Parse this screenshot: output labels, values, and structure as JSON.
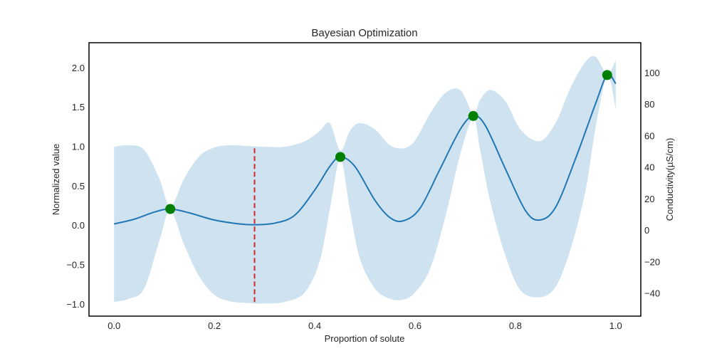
{
  "chart_data": {
    "type": "line",
    "title": "Bayesian Optimization",
    "xlabel": "Proportion of solute",
    "ylabel": "Normalized value",
    "ylabel_right": "Conductivity(µS/cm)",
    "xlim": [
      -0.05,
      1.05
    ],
    "ylim": [
      -1.15,
      2.32
    ],
    "ylim_right": [
      -54.4,
      119.2
    ],
    "x_ticks": [
      0.0,
      0.2,
      0.4,
      0.6,
      0.8,
      1.0
    ],
    "x_tick_labels": [
      "0.0",
      "0.2",
      "0.4",
      "0.6",
      "0.8",
      "1.0"
    ],
    "y_ticks": [
      -1.0,
      -0.5,
      0.0,
      0.5,
      1.0,
      1.5,
      2.0
    ],
    "y_tick_labels": [
      "−1.0",
      "−0.5",
      "0.0",
      "0.5",
      "1.0",
      "1.5",
      "2.0"
    ],
    "y_right_ticks": [
      -40,
      -20,
      0,
      20,
      40,
      60,
      80,
      100
    ],
    "y_right_tick_labels": [
      "−40",
      "−20",
      "0",
      "20",
      "40",
      "60",
      "80",
      "100"
    ],
    "grid": false,
    "series": [
      {
        "kind": "mean",
        "color": "#1f77b4",
        "x": [
          0.0,
          0.04,
          0.08,
          0.112,
          0.15,
          0.2,
          0.25,
          0.28,
          0.32,
          0.36,
          0.4,
          0.43,
          0.451,
          0.48,
          0.52,
          0.55,
          0.577,
          0.61,
          0.65,
          0.69,
          0.716,
          0.74,
          0.78,
          0.82,
          0.848,
          0.88,
          0.92,
          0.96,
          0.983,
          1.0
        ],
        "y": [
          0.02,
          0.08,
          0.17,
          0.21,
          0.16,
          0.07,
          0.02,
          0.01,
          0.03,
          0.13,
          0.45,
          0.75,
          0.87,
          0.75,
          0.32,
          0.1,
          0.06,
          0.22,
          0.72,
          1.22,
          1.39,
          1.27,
          0.72,
          0.19,
          0.07,
          0.23,
          0.85,
          1.55,
          1.91,
          1.8
        ]
      },
      {
        "kind": "confidence-band",
        "color": "#cfe2f0",
        "x": [
          0.0,
          0.03,
          0.06,
          0.09,
          0.112,
          0.14,
          0.17,
          0.2,
          0.23,
          0.26,
          0.3,
          0.34,
          0.38,
          0.41,
          0.43,
          0.451,
          0.47,
          0.49,
          0.52,
          0.55,
          0.577,
          0.6,
          0.63,
          0.66,
          0.69,
          0.716,
          0.73,
          0.75,
          0.78,
          0.81,
          0.848,
          0.88,
          0.91,
          0.94,
          0.96,
          0.983,
          1.0
        ],
        "upper": [
          1.0,
          1.02,
          0.96,
          0.6,
          0.24,
          0.6,
          0.88,
          0.99,
          1.02,
          1.01,
          1.0,
          1.0,
          1.07,
          1.2,
          1.3,
          0.95,
          1.2,
          1.3,
          1.22,
          1.02,
          0.98,
          1.08,
          1.42,
          1.68,
          1.72,
          1.42,
          1.6,
          1.72,
          1.58,
          1.22,
          1.07,
          1.3,
          1.75,
          2.08,
          2.14,
          1.92,
          2.1
        ],
        "lower": [
          -0.97,
          -0.93,
          -0.8,
          -0.2,
          0.19,
          -0.25,
          -0.65,
          -0.88,
          -0.96,
          -0.98,
          -0.99,
          -0.97,
          -0.85,
          -0.45,
          0.2,
          0.84,
          0.2,
          -0.42,
          -0.8,
          -0.93,
          -0.94,
          -0.85,
          -0.55,
          0.1,
          0.9,
          1.36,
          0.95,
          0.3,
          -0.38,
          -0.82,
          -0.91,
          -0.78,
          -0.3,
          0.45,
          1.25,
          1.9,
          1.48
        ]
      },
      {
        "kind": "observations",
        "color": "#008000",
        "x": [
          0.112,
          0.451,
          0.716,
          0.983
        ],
        "y": [
          0.21,
          0.87,
          1.39,
          1.91
        ]
      },
      {
        "kind": "next-sample",
        "color": "#d62728",
        "x": 0.28,
        "y_range": [
          -0.99,
          0.98
        ]
      }
    ]
  }
}
